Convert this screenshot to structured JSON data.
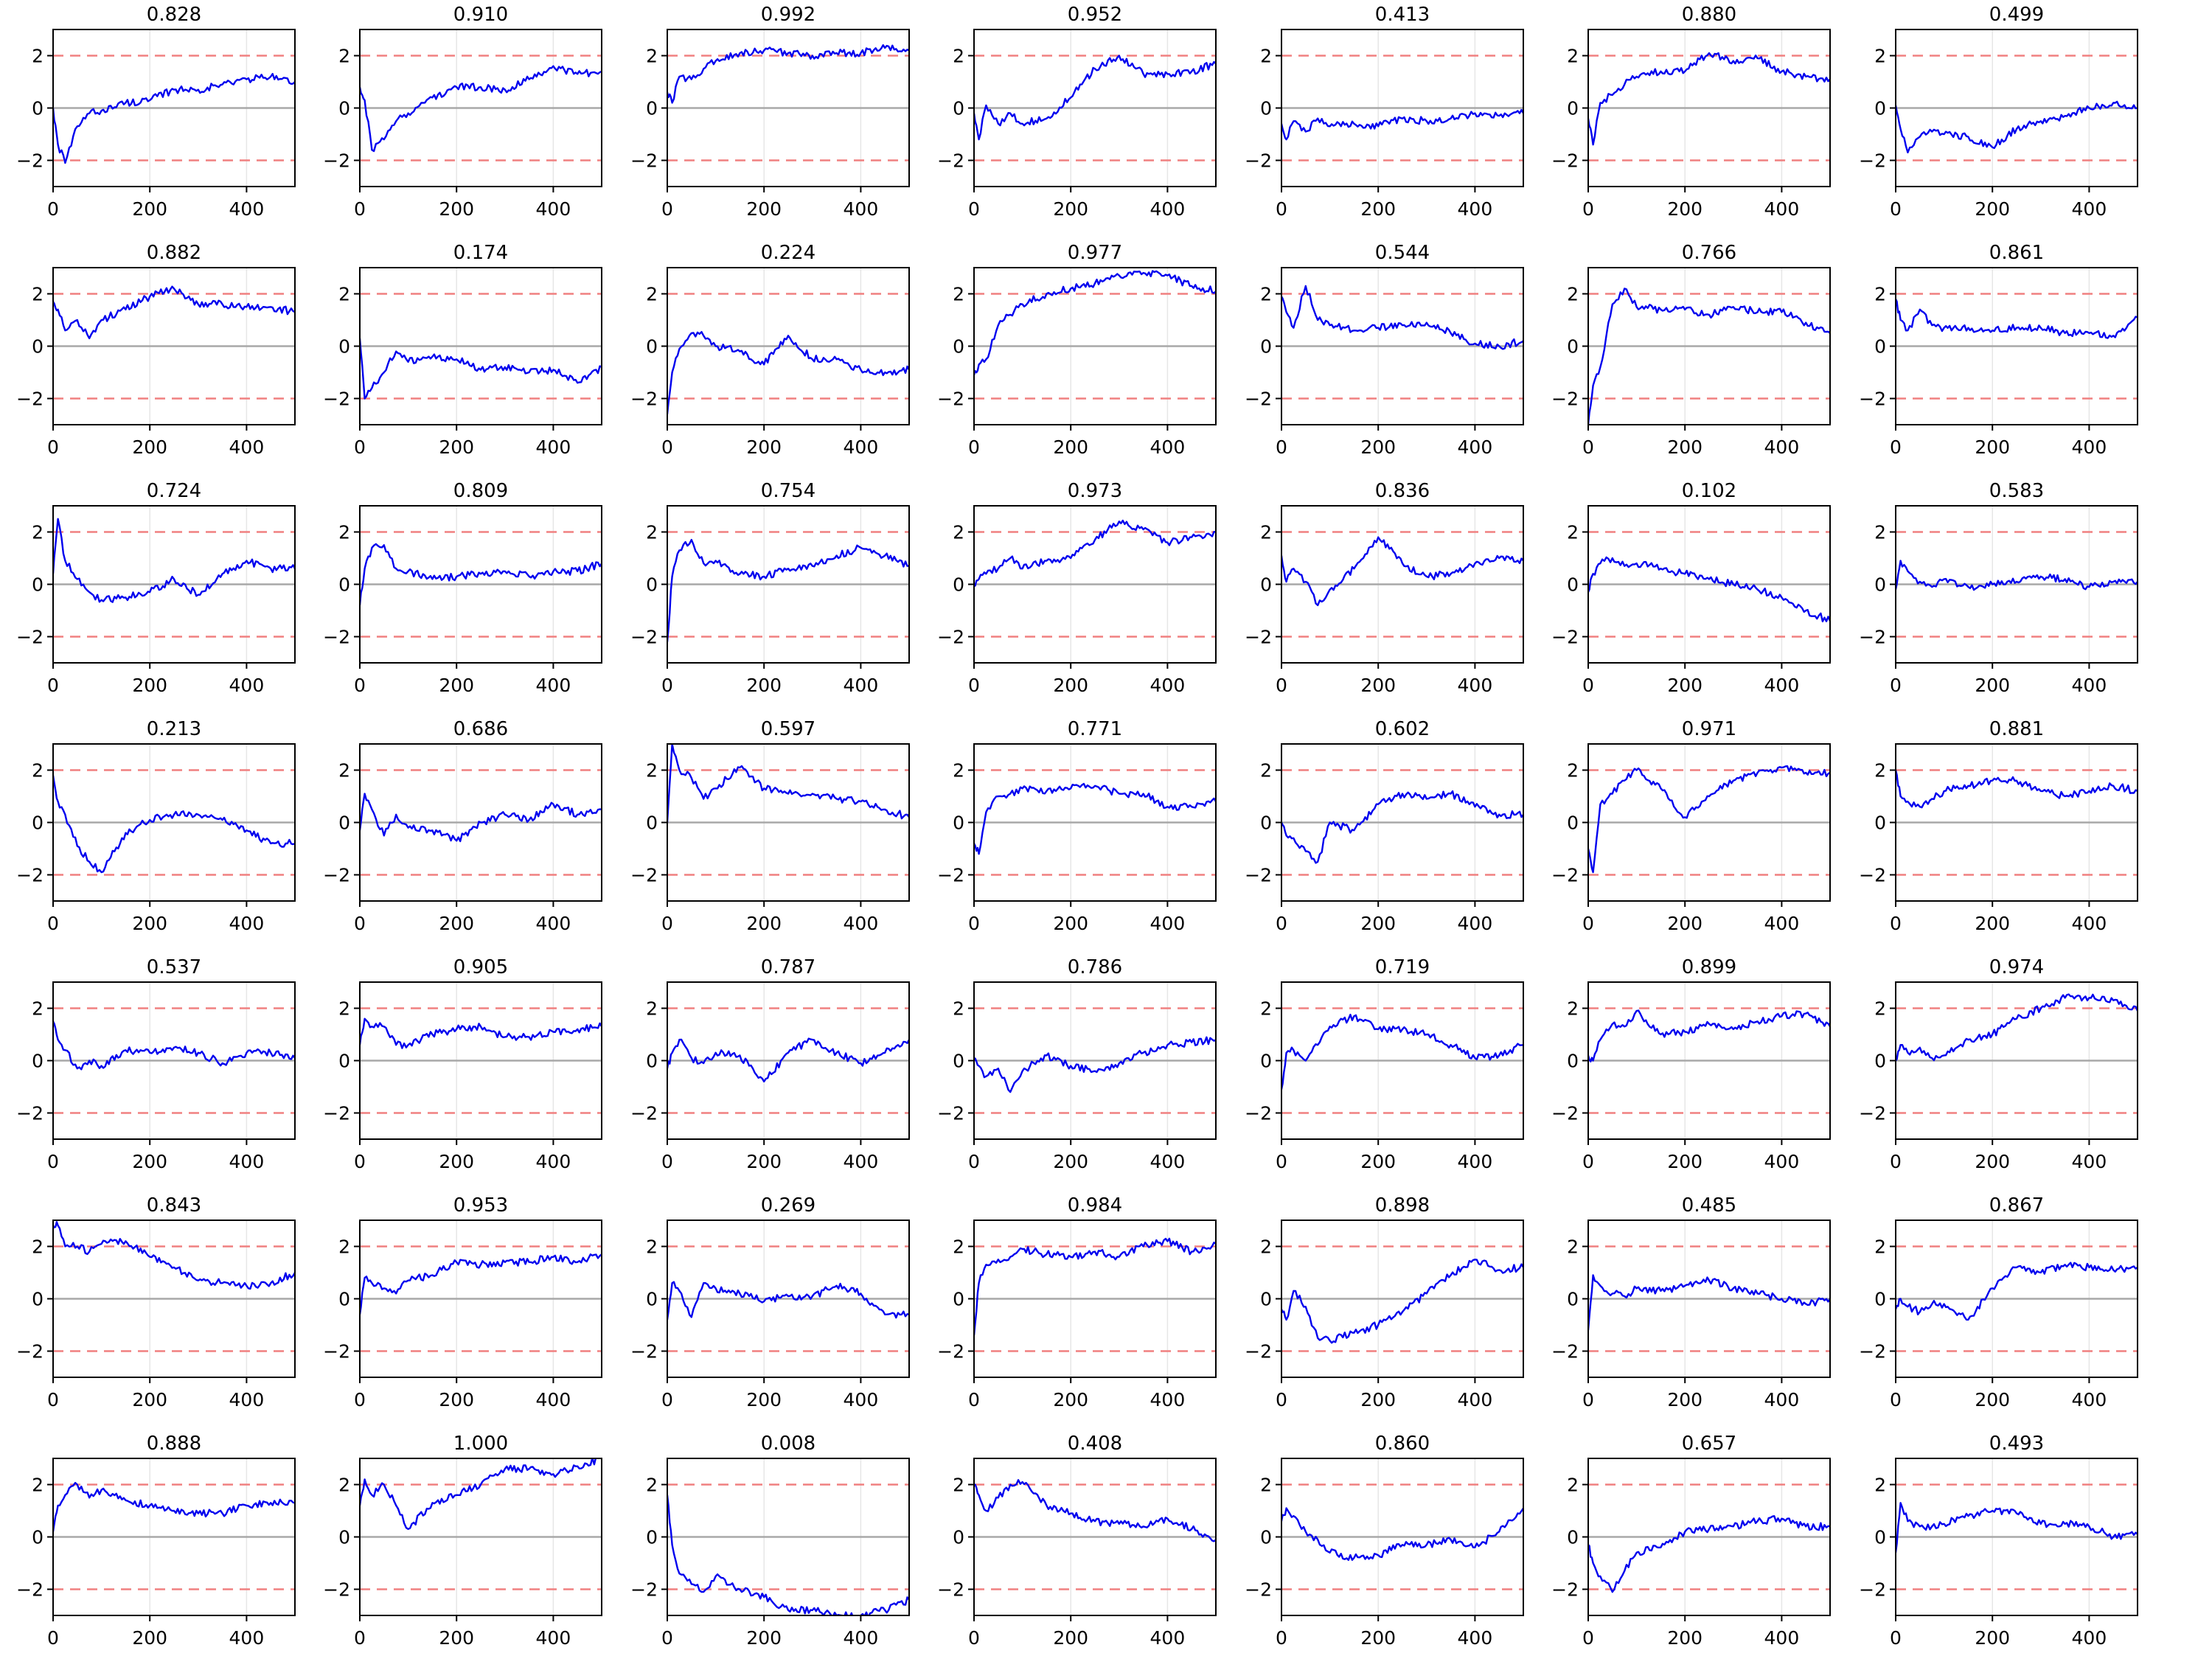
{
  "chart_data": {
    "type": "line",
    "layout": {
      "rows": 7,
      "cols": 7
    },
    "xlim": [
      0,
      500
    ],
    "ylim": [
      -3,
      3
    ],
    "x_ticks": [
      0,
      200,
      400
    ],
    "y_ticks": [
      -2,
      0,
      2
    ],
    "y_tick_labels": [
      "−2",
      "0",
      "2"
    ],
    "grid": "vertical",
    "reference_lines": {
      "zero": 0,
      "upper": 2,
      "lower": -2
    },
    "colors": {
      "series": "#0000ee",
      "reference_dashed": "#f08080",
      "zero": "#a8a8a8",
      "grid": "#e6e6e6"
    },
    "series_x": [
      0,
      10,
      25,
      50,
      75,
      100,
      150,
      200,
      250,
      300,
      350,
      400,
      450,
      500
    ],
    "panels": [
      {
        "title": "0.828",
        "values": [
          0,
          -1.4,
          -2.1,
          -0.7,
          -0.2,
          -0.1,
          0.2,
          0.3,
          0.7,
          0.7,
          0.9,
          1.1,
          1.2,
          1.0
        ]
      },
      {
        "title": "0.910",
        "values": [
          0.8,
          0.3,
          -1.6,
          -1.2,
          -0.5,
          -0.2,
          0.4,
          0.8,
          0.8,
          0.7,
          1.1,
          1.6,
          1.3,
          1.4
        ]
      },
      {
        "title": "0.992",
        "values": [
          0.6,
          0.2,
          1.2,
          1.1,
          1.5,
          1.8,
          2.1,
          2.2,
          2.1,
          2.0,
          2.1,
          2.1,
          2.3,
          2.2
        ]
      },
      {
        "title": "0.952",
        "values": [
          -0.2,
          -1.2,
          0.1,
          -0.6,
          -0.2,
          -0.6,
          -0.4,
          0.4,
          1.5,
          2.0,
          1.3,
          1.3,
          1.4,
          1.7
        ]
      },
      {
        "title": "0.413",
        "values": [
          -0.6,
          -1.2,
          -0.5,
          -0.9,
          -0.4,
          -0.7,
          -0.6,
          -0.7,
          -0.4,
          -0.5,
          -0.4,
          -0.2,
          -0.3,
          -0.2
        ]
      },
      {
        "title": "0.880",
        "values": [
          -0.4,
          -1.4,
          0.2,
          0.5,
          0.9,
          1.2,
          1.4,
          1.4,
          2.1,
          1.8,
          1.9,
          1.4,
          1.2,
          1.1
        ]
      },
      {
        "title": "0.499",
        "values": [
          0.1,
          -0.8,
          -1.7,
          -1.1,
          -0.9,
          -1.0,
          -1.1,
          -1.5,
          -0.8,
          -0.5,
          -0.3,
          0,
          0.2,
          0
        ]
      },
      {
        "title": "0.882",
        "values": [
          1.7,
          1.4,
          0.6,
          1.0,
          0.3,
          1.0,
          1.4,
          1.9,
          2.2,
          1.6,
          1.6,
          1.5,
          1.5,
          1.3
        ]
      },
      {
        "title": "0.174",
        "values": [
          0.3,
          -2.0,
          -1.6,
          -1.0,
          -0.2,
          -0.6,
          -0.4,
          -0.5,
          -0.9,
          -0.8,
          -1.0,
          -0.9,
          -1.4,
          -0.8
        ]
      },
      {
        "title": "0.224",
        "values": [
          -2.6,
          -1.0,
          -0.1,
          0.5,
          0.4,
          0,
          -0.2,
          -0.7,
          0.4,
          -0.5,
          -0.5,
          -0.9,
          -1.0,
          -0.9
        ]
      },
      {
        "title": "0.977",
        "values": [
          -1.1,
          -0.7,
          -0.5,
          0.8,
          1.2,
          1.6,
          2.0,
          2.2,
          2.4,
          2.7,
          2.8,
          2.7,
          2.3,
          2.1
        ]
      },
      {
        "title": "0.544",
        "values": [
          1.9,
          1.3,
          0.7,
          2.3,
          1.0,
          0.8,
          0.6,
          0.7,
          0.8,
          0.9,
          0.5,
          0.1,
          0,
          0.2
        ]
      },
      {
        "title": "0.766",
        "values": [
          -3.0,
          -1.5,
          -0.8,
          1.6,
          2.2,
          1.5,
          1.4,
          1.4,
          1.2,
          1.5,
          1.3,
          1.3,
          0.9,
          0.5
        ]
      },
      {
        "title": "0.861",
        "values": [
          1.8,
          1.0,
          0.6,
          1.4,
          0.8,
          0.7,
          0.7,
          0.6,
          0.7,
          0.7,
          0.5,
          0.5,
          0.4,
          1.1
        ]
      },
      {
        "title": "0.724",
        "values": [
          0.4,
          2.5,
          0.9,
          0.2,
          -0.3,
          -0.6,
          -0.5,
          -0.3,
          0.2,
          -0.4,
          0.4,
          0.9,
          0.6,
          0.6
        ]
      },
      {
        "title": "0.809",
        "values": [
          -0.8,
          0.6,
          1.4,
          1.5,
          0.6,
          0.5,
          0.2,
          0.3,
          0.4,
          0.5,
          0.3,
          0.5,
          0.5,
          0.8
        ]
      },
      {
        "title": "0.754",
        "values": [
          -2.2,
          0.3,
          1.3,
          1.7,
          0.8,
          0.9,
          0.4,
          0.3,
          0.6,
          0.7,
          1.1,
          1.4,
          1.1,
          0.7
        ]
      },
      {
        "title": "0.973",
        "values": [
          0,
          0.2,
          0.4,
          0.6,
          1.0,
          0.6,
          0.9,
          1.0,
          1.7,
          2.4,
          2.1,
          1.6,
          1.8,
          2.0
        ]
      },
      {
        "title": "0.836",
        "values": [
          1.1,
          0.1,
          0.6,
          0.1,
          -0.8,
          -0.2,
          0.6,
          1.8,
          0.8,
          0.3,
          0.4,
          0.8,
          1.0,
          0.9
        ]
      },
      {
        "title": "0.102",
        "values": [
          -0.3,
          0.4,
          0.8,
          1.0,
          0.7,
          0.8,
          0.6,
          0.4,
          0.2,
          0,
          -0.2,
          -0.5,
          -1.0,
          -1.4
        ]
      },
      {
        "title": "0.583",
        "values": [
          -0.2,
          0.9,
          0.5,
          0.1,
          -0.1,
          0.2,
          -0.1,
          0,
          0.1,
          0.3,
          0.2,
          -0.1,
          0.1,
          0.1
        ]
      },
      {
        "title": "0.213",
        "values": [
          1.8,
          0.8,
          0.3,
          -0.9,
          -1.5,
          -1.9,
          -0.4,
          0.1,
          0.3,
          0.3,
          0.1,
          -0.3,
          -0.8,
          -0.8
        ]
      },
      {
        "title": "0.686",
        "values": [
          -0.3,
          1.1,
          0.5,
          -0.5,
          0.3,
          -0.2,
          -0.3,
          -0.7,
          0,
          0.3,
          0.1,
          0.7,
          0.3,
          0.5
        ]
      },
      {
        "title": "0.597",
        "values": [
          0,
          3.0,
          2.0,
          1.7,
          0.9,
          1.3,
          2.1,
          1.3,
          1.1,
          1.1,
          0.9,
          0.8,
          0.5,
          0.2
        ]
      },
      {
        "title": "0.771",
        "values": [
          -0.8,
          -1.2,
          0.4,
          1.0,
          1.1,
          1.3,
          1.2,
          1.3,
          1.4,
          1.1,
          1.1,
          0.6,
          0.6,
          0.8
        ]
      },
      {
        "title": "0.602",
        "values": [
          0,
          -0.5,
          -0.6,
          -1.1,
          -1.5,
          0,
          -0.3,
          0.7,
          1.1,
          0.9,
          1.1,
          0.6,
          0.3,
          0.3
        ]
      },
      {
        "title": "0.971",
        "values": [
          -1.0,
          -1.9,
          0.7,
          1.1,
          1.6,
          2.0,
          1.3,
          0.2,
          1.0,
          1.6,
          1.9,
          2.1,
          1.9,
          1.9
        ]
      },
      {
        "title": "0.881",
        "values": [
          2.0,
          1.0,
          0.8,
          0.6,
          0.9,
          1.2,
          1.4,
          1.6,
          1.6,
          1.2,
          1.0,
          1.2,
          1.4,
          1.2
        ]
      },
      {
        "title": "0.537",
        "values": [
          1.5,
          0.8,
          0.4,
          -0.3,
          0,
          -0.2,
          0.4,
          0.3,
          0.5,
          0.3,
          -0.1,
          0.3,
          0.3,
          0.1
        ]
      },
      {
        "title": "0.905",
        "values": [
          0.6,
          1.6,
          1.3,
          1.3,
          0.6,
          0.6,
          1.0,
          1.2,
          1.3,
          0.9,
          0.9,
          1.1,
          1.2,
          1.3
        ]
      },
      {
        "title": "0.787",
        "values": [
          -0.3,
          0.3,
          0.8,
          0.1,
          -0.1,
          0.3,
          0.2,
          -0.8,
          0.3,
          0.8,
          0.3,
          -0.1,
          0.3,
          0.8
        ]
      },
      {
        "title": "0.786",
        "values": [
          0,
          -0.2,
          -0.6,
          -0.3,
          -1.2,
          -0.4,
          0.2,
          -0.2,
          -0.4,
          -0.1,
          0.3,
          0.6,
          0.7,
          0.8
        ]
      },
      {
        "title": "0.719",
        "values": [
          -1.1,
          0.3,
          0.4,
          0,
          0.6,
          1.3,
          1.7,
          1.2,
          1.2,
          1.0,
          0.6,
          0.1,
          0.2,
          0.6
        ]
      },
      {
        "title": "0.899",
        "values": [
          0.2,
          0,
          0.8,
          1.4,
          1.3,
          1.9,
          1.0,
          1.1,
          1.4,
          1.2,
          1.5,
          1.7,
          1.8,
          1.3
        ]
      },
      {
        "title": "0.974",
        "values": [
          0,
          0.6,
          0.3,
          0.5,
          0.1,
          0.2,
          0.8,
          1.0,
          1.6,
          2.0,
          2.4,
          2.4,
          2.3,
          1.9
        ]
      },
      {
        "title": "0.843",
        "values": [
          2.8,
          2.8,
          2.0,
          2.0,
          1.8,
          2.1,
          2.2,
          1.6,
          1.2,
          0.7,
          0.6,
          0.5,
          0.6,
          1.0
        ]
      },
      {
        "title": "0.953",
        "values": [
          -0.6,
          0.8,
          0.6,
          0.4,
          0.2,
          0.7,
          0.9,
          1.4,
          1.3,
          1.4,
          1.4,
          1.6,
          1.4,
          1.7
        ]
      },
      {
        "title": "0.269",
        "values": [
          -0.8,
          0.6,
          0.3,
          -0.7,
          0.6,
          0.4,
          0.2,
          -0.1,
          0.1,
          0.1,
          0.5,
          0.2,
          -0.6,
          -0.6
        ]
      },
      {
        "title": "0.984",
        "values": [
          -1.4,
          0.6,
          1.3,
          1.5,
          1.6,
          1.9,
          1.7,
          1.6,
          1.8,
          1.6,
          2.0,
          2.2,
          1.8,
          2.1
        ]
      },
      {
        "title": "0.898",
        "values": [
          -0.4,
          -0.8,
          0.3,
          -0.3,
          -1.5,
          -1.6,
          -1.3,
          -1.0,
          -0.5,
          0.2,
          0.9,
          1.5,
          1.1,
          1.2
        ]
      },
      {
        "title": "0.485",
        "values": [
          -1.2,
          0.9,
          0.5,
          0.2,
          0.1,
          0.4,
          0.3,
          0.5,
          0.7,
          0.4,
          0.2,
          0,
          -0.2,
          0
        ]
      },
      {
        "title": "0.867",
        "values": [
          -0.4,
          0,
          -0.3,
          -0.5,
          -0.2,
          -0.2,
          -0.8,
          0.4,
          1.2,
          1.0,
          1.3,
          1.2,
          1.1,
          1.2
        ]
      },
      {
        "title": "0.888",
        "values": [
          0.2,
          1.2,
          1.6,
          2.0,
          1.5,
          1.8,
          1.4,
          1.2,
          1.0,
          0.9,
          0.9,
          1.2,
          1.3,
          1.3
        ]
      },
      {
        "title": "1.000",
        "values": [
          1.2,
          2.2,
          1.6,
          2.0,
          1.2,
          0.3,
          1.3,
          1.6,
          2.0,
          2.6,
          2.6,
          2.4,
          2.7,
          3.0
        ]
      },
      {
        "title": "0.008",
        "values": [
          1.6,
          -0.3,
          -1.4,
          -1.8,
          -2.1,
          -1.5,
          -2.0,
          -2.3,
          -2.8,
          -2.8,
          -3.0,
          -3.0,
          -2.8,
          -2.4
        ]
      },
      {
        "title": "0.408",
        "values": [
          2.0,
          1.6,
          1.0,
          1.5,
          2.0,
          2.1,
          1.2,
          0.9,
          0.6,
          0.5,
          0.4,
          0.7,
          0.3,
          -0.1
        ]
      },
      {
        "title": "0.860",
        "values": [
          0.6,
          1.1,
          0.8,
          0.2,
          -0.1,
          -0.6,
          -0.8,
          -0.7,
          -0.3,
          -0.3,
          -0.1,
          -0.4,
          0.2,
          1.1
        ]
      },
      {
        "title": "0.657",
        "values": [
          -0.3,
          -1.0,
          -1.5,
          -2.1,
          -1.3,
          -0.6,
          -0.4,
          0.2,
          0.3,
          0.4,
          0.6,
          0.7,
          0.4,
          0.4
        ]
      },
      {
        "title": "0.493",
        "values": [
          -0.6,
          1.3,
          0.6,
          0.4,
          0.4,
          0.5,
          0.8,
          1.0,
          0.9,
          0.5,
          0.5,
          0.4,
          0,
          0.1
        ]
      }
    ]
  }
}
